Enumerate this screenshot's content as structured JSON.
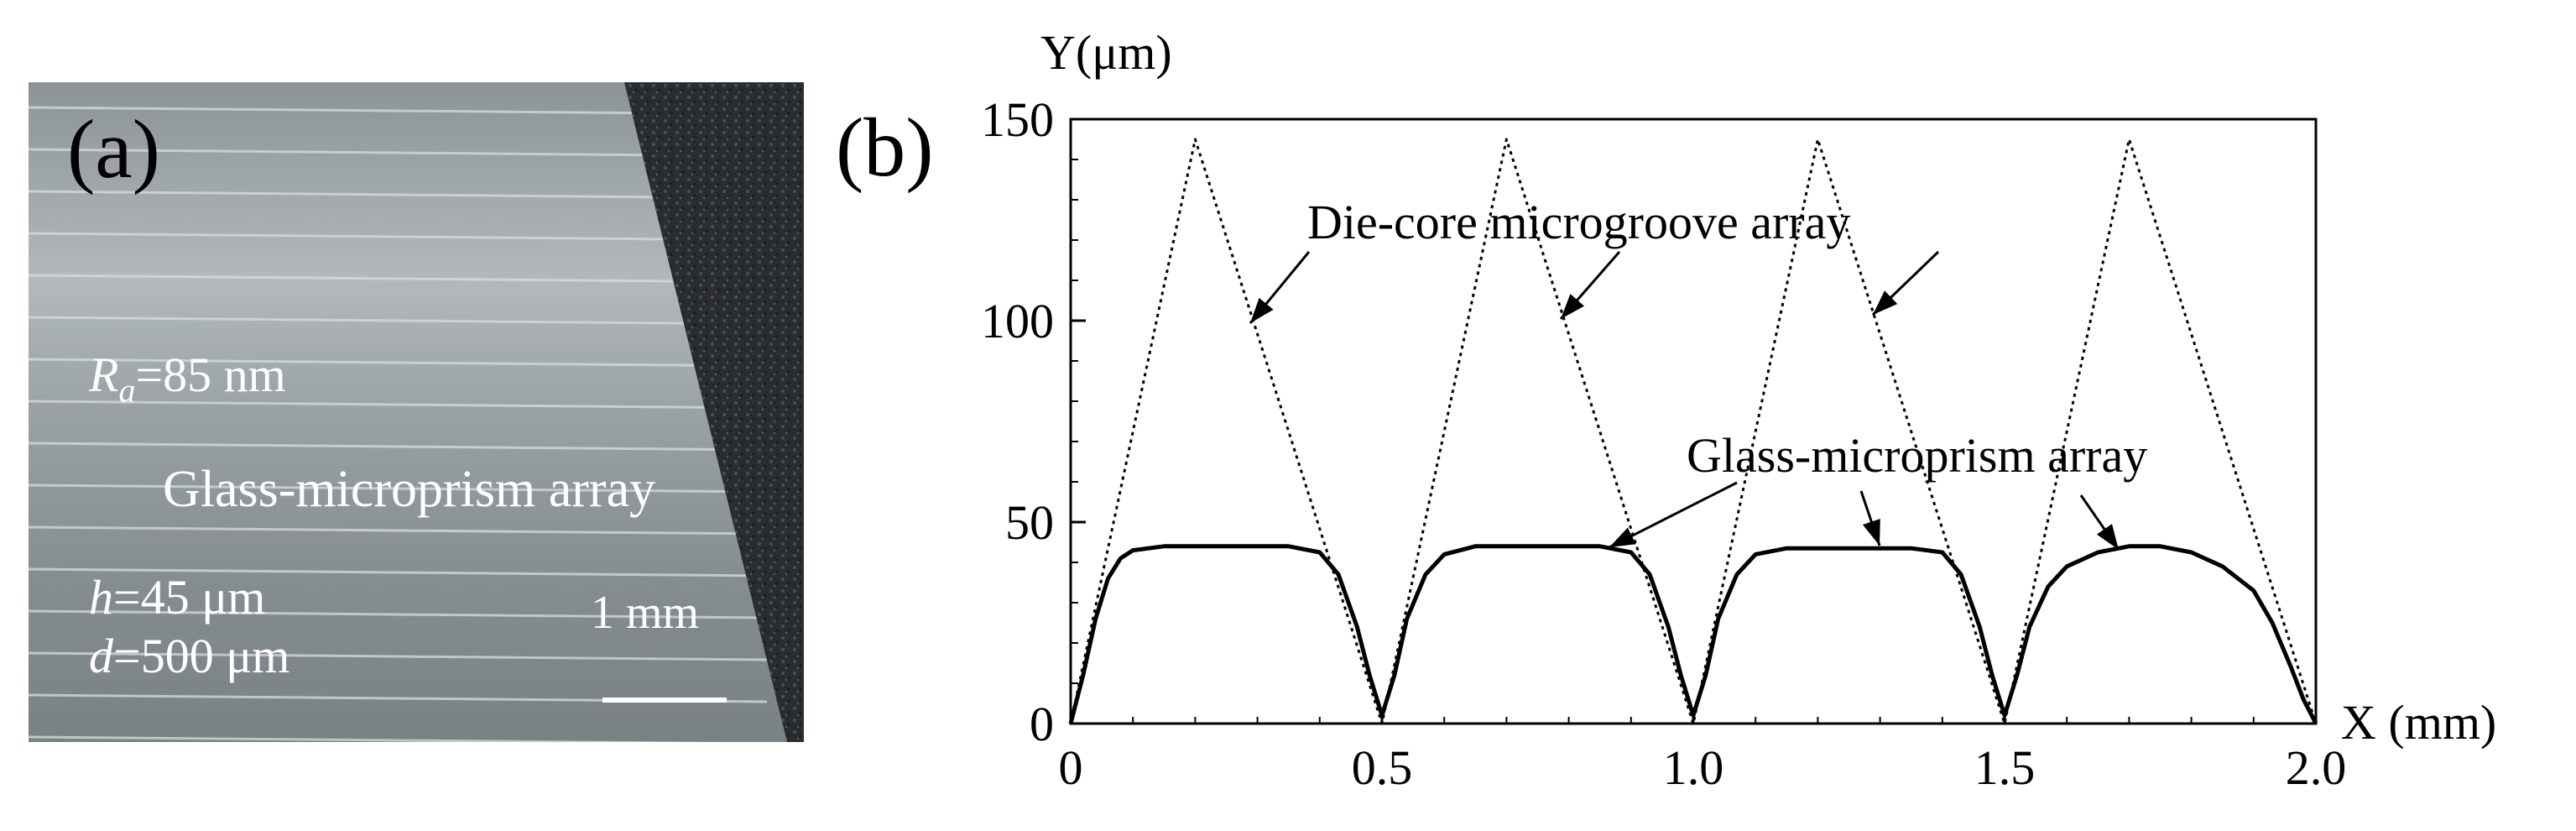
{
  "panel_a": {
    "label": "(a)",
    "roughness_symbol": "R",
    "roughness_subscript": "a",
    "roughness_value": "=85 nm",
    "title": "Glass-microprism array",
    "height_symbol": "h",
    "height_value": "=45 μm",
    "pitch_symbol": "d",
    "pitch_value": "=500 μm",
    "scale_label": "1 mm"
  },
  "panel_b": {
    "label": "(b)"
  },
  "chart_data": {
    "type": "line",
    "title": "",
    "xlabel": "X (mm)",
    "ylabel": "Y(μm)",
    "xlim": [
      0,
      2.0
    ],
    "ylim": [
      0,
      150
    ],
    "xticks": [
      0,
      0.5,
      1.0,
      1.5,
      2.0
    ],
    "xtick_labels": [
      "0",
      "0.5",
      "1.0",
      "1.5",
      "2.0"
    ],
    "yticks": [
      0,
      50,
      100,
      150
    ],
    "ytick_labels": [
      "0",
      "50",
      "100",
      "150"
    ],
    "grid": false,
    "series": [
      {
        "name": "Die-core microgroove array",
        "style": "dotted",
        "color": "#000000",
        "x": [
          0,
          0.2,
          0.5,
          0.7,
          1.0,
          1.2,
          1.5,
          1.7,
          2.0
        ],
        "y": [
          0,
          145,
          0,
          145,
          0,
          145,
          0,
          145,
          0
        ]
      },
      {
        "name": "Glass-microprism array",
        "style": "solid",
        "color": "#000000",
        "x": [
          0,
          0.02,
          0.04,
          0.06,
          0.08,
          0.1,
          0.15,
          0.25,
          0.35,
          0.4,
          0.43,
          0.46,
          0.48,
          0.5,
          0.52,
          0.54,
          0.57,
          0.6,
          0.65,
          0.75,
          0.85,
          0.9,
          0.93,
          0.96,
          0.98,
          1.0,
          1.02,
          1.04,
          1.07,
          1.1,
          1.15,
          1.25,
          1.35,
          1.4,
          1.43,
          1.46,
          1.48,
          1.5,
          1.52,
          1.54,
          1.57,
          1.6,
          1.65,
          1.7,
          1.75,
          1.8,
          1.85,
          1.9,
          1.93,
          1.96,
          1.98,
          2.0
        ],
        "y": [
          0,
          12,
          26,
          36,
          41,
          43,
          44,
          44,
          44,
          42.5,
          37,
          24,
          12,
          2,
          12,
          26,
          37,
          42,
          44,
          44,
          44,
          42.5,
          37,
          24,
          12,
          2,
          12,
          26,
          37,
          42,
          43.5,
          43.5,
          43.5,
          42.5,
          37,
          24,
          12,
          2,
          12,
          24,
          34,
          39,
          42.5,
          44,
          44,
          42.5,
          39,
          33,
          25,
          14,
          6,
          0
        ]
      }
    ],
    "annotations": [
      {
        "text": "Die-core microgroove array"
      },
      {
        "text": "Glass-microprism array"
      }
    ]
  }
}
